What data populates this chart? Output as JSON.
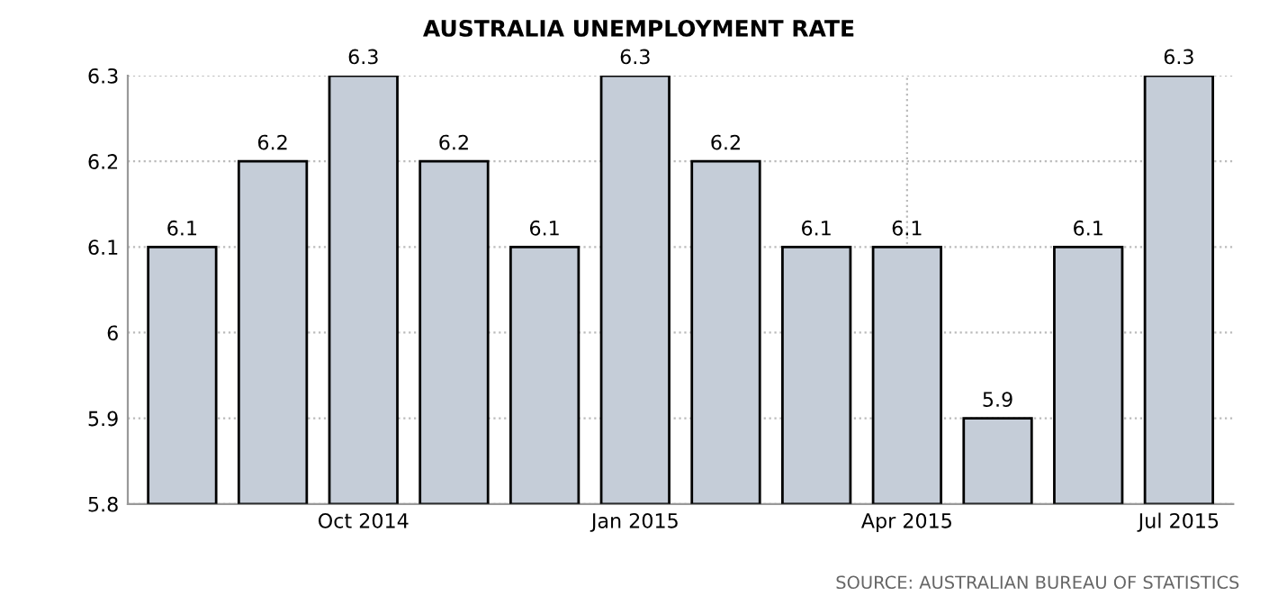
{
  "chart_data": {
    "type": "bar",
    "title": "AUSTRALIA UNEMPLOYMENT RATE",
    "categories": [
      null,
      null,
      "Oct 2014",
      null,
      null,
      "Jan 2015",
      null,
      null,
      "Apr 2015",
      null,
      null,
      "Jul 2015"
    ],
    "values": [
      6.1,
      6.2,
      6.3,
      6.2,
      6.1,
      6.3,
      6.2,
      6.1,
      6.1,
      5.9,
      6.1,
      6.3
    ],
    "color": "#c5cdd8",
    "ylim": [
      5.8,
      6.3
    ],
    "yticks": [
      5.8,
      5.9,
      6,
      6.1,
      6.2,
      6.3
    ],
    "grid": true,
    "data_labels": true,
    "annotations": [
      "SOURCE: AUSTRALIAN BUREAU OF STATISTICS"
    ]
  }
}
